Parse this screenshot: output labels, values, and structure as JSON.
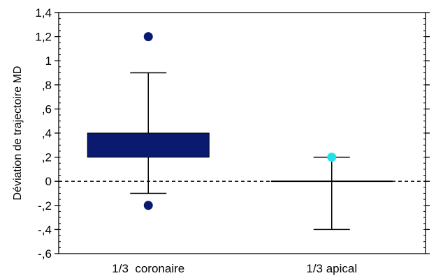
{
  "chart_data": {
    "type": "box",
    "title": "",
    "xlabel": "",
    "ylabel": "Déviation de trajectoire MD",
    "ylim": [
      -0.6,
      1.4
    ],
    "y_ticks": [
      -0.6,
      -0.4,
      -0.2,
      0,
      0.2,
      0.4,
      0.6,
      0.8,
      1,
      1.2,
      1.4
    ],
    "y_tick_labels": [
      "-,6",
      "-,4",
      "-,2",
      "0",
      ",2",
      ",4",
      ",6",
      ",8",
      "1",
      "1,2",
      "1,4"
    ],
    "reference_line": {
      "y": 0,
      "style": "dashed"
    },
    "grid": false,
    "categories": [
      "1/3  coronaire",
      "1/3 apical"
    ],
    "boxes": [
      {
        "category": "1/3  coronaire",
        "q1": 0.2,
        "q3": 0.4,
        "median": 0.2,
        "whisker_low": -0.1,
        "whisker_high": 0.9,
        "outliers": [
          1.2,
          -0.2
        ],
        "color": "#0a1a6e"
      },
      {
        "category": "1/3 apical",
        "q1": 0.0,
        "q3": 0.0,
        "median": 0.0,
        "whisker_low": -0.4,
        "whisker_high": 0.2,
        "outliers": [
          0.2
        ],
        "color": "#22e0e8"
      }
    ]
  }
}
